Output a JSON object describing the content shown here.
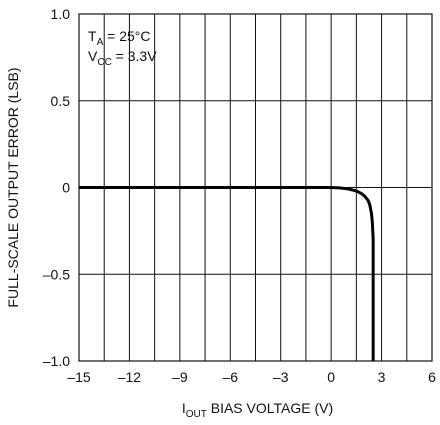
{
  "chart_data": {
    "type": "line",
    "title": "",
    "xlabel": {
      "main": "I",
      "sub": "OUT",
      "rest": " BIAS VOLTAGE (V)"
    },
    "ylabel": "FULL-SCALE OUTPUT ERROR (LSB)",
    "xlim": [
      -15,
      6
    ],
    "ylim": [
      -1.0,
      1.0
    ],
    "xticks": [
      -15,
      -12,
      -9,
      -6,
      -3,
      0,
      3,
      6
    ],
    "xtick_labels": [
      "–15",
      "–12",
      "–9",
      "–6",
      "–3",
      "0",
      "3",
      "6"
    ],
    "yticks": [
      -1.0,
      -0.5,
      0,
      0.5,
      1.0
    ],
    "ytick_labels": [
      "–1.0",
      "–0.5",
      "0",
      "0.5",
      "1.0"
    ],
    "xgrid": [
      -15,
      -13.5,
      -12,
      -10.5,
      -9,
      -7.5,
      -6,
      -4.5,
      -3,
      -1.5,
      0,
      1.5,
      3,
      4.5,
      6
    ],
    "ygrid": [
      -1.0,
      -0.5,
      0,
      0.5,
      1.0
    ],
    "grid": true,
    "annotations": [
      {
        "main": "T",
        "sub": "A",
        "rest": " = 25°C"
      },
      {
        "main": "V",
        "sub": "CC",
        "rest": " = 3.3V"
      }
    ],
    "series": [
      {
        "color": "#000000",
        "x": [
          -15,
          -3,
          0,
          0.5,
          1.0,
          1.5,
          1.8,
          2.0,
          2.2,
          2.3,
          2.4,
          2.45,
          2.5,
          2.5
        ],
        "y": [
          0,
          0,
          0,
          -0.002,
          -0.008,
          -0.02,
          -0.035,
          -0.05,
          -0.075,
          -0.1,
          -0.15,
          -0.2,
          -0.3,
          -1.0
        ]
      }
    ]
  }
}
